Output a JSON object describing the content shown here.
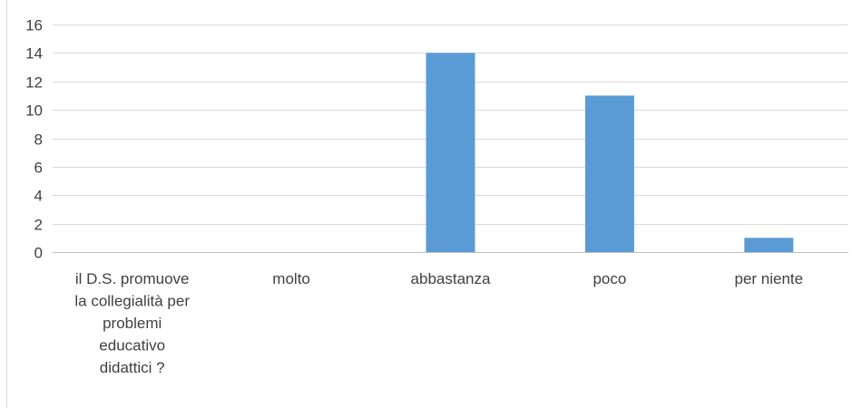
{
  "chart_data": {
    "type": "bar",
    "categories": [
      "il D.S. promuove la collegialità per problemi educativo didattici ?",
      "molto",
      "abbastanza",
      "poco",
      "per niente"
    ],
    "category_label_lines": [
      [
        "il D.S. promuove",
        "la collegialità per",
        "problemi",
        "educativo",
        "didattici ?"
      ],
      [
        "molto"
      ],
      [
        "abbastanza"
      ],
      [
        "poco"
      ],
      [
        "per niente"
      ]
    ],
    "values": [
      null,
      null,
      14,
      11,
      1
    ],
    "ylim": [
      0,
      16
    ],
    "yticks": [
      0,
      2,
      4,
      6,
      8,
      10,
      12,
      14,
      16
    ],
    "grid": true,
    "legend": "none",
    "title": "",
    "xlabel": "",
    "ylabel": ""
  },
  "colors": {
    "bar": "#5B9BD5",
    "grid": "#D9D9D9",
    "axis": "#BFBFBF",
    "text": "#404040",
    "frame": "#D9D9D9"
  }
}
